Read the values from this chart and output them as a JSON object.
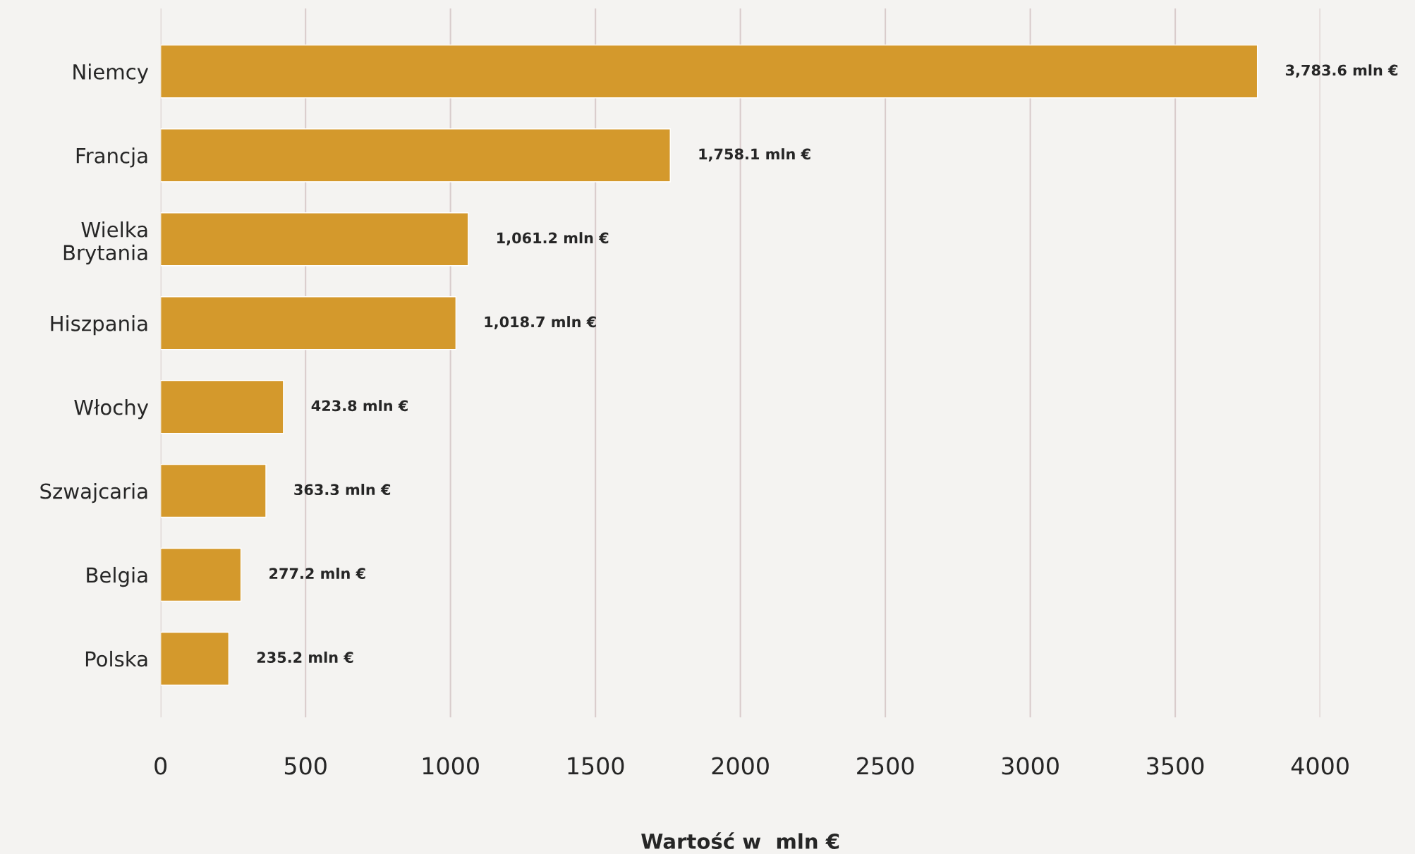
{
  "chart_data": {
    "type": "bar",
    "orientation": "horizontal",
    "categories": [
      "Niemcy",
      "Francja",
      "Wielka\nBrytania",
      "Hiszpania",
      "Włochy",
      "Szwajcaria",
      "Belgia",
      "Polska"
    ],
    "values": [
      3783.6,
      1758.1,
      1061.2,
      1018.7,
      423.8,
      363.3,
      277.2,
      235.2
    ],
    "value_labels": [
      "3,783.6 mln €",
      "1,758.1 mln €",
      "1,061.2 mln €",
      "1,018.7 mln €",
      "423.8 mln €",
      "363.3 mln €",
      "277.2 mln €",
      "235.2 mln €"
    ],
    "color": "#d4992c",
    "xlabel": "Wartość w  mln €",
    "xlim": [
      0,
      4000
    ],
    "xticks": [
      0,
      500,
      1000,
      1500,
      2000,
      2500,
      3000,
      3500,
      4000
    ],
    "grid": "x",
    "legend": false
  }
}
